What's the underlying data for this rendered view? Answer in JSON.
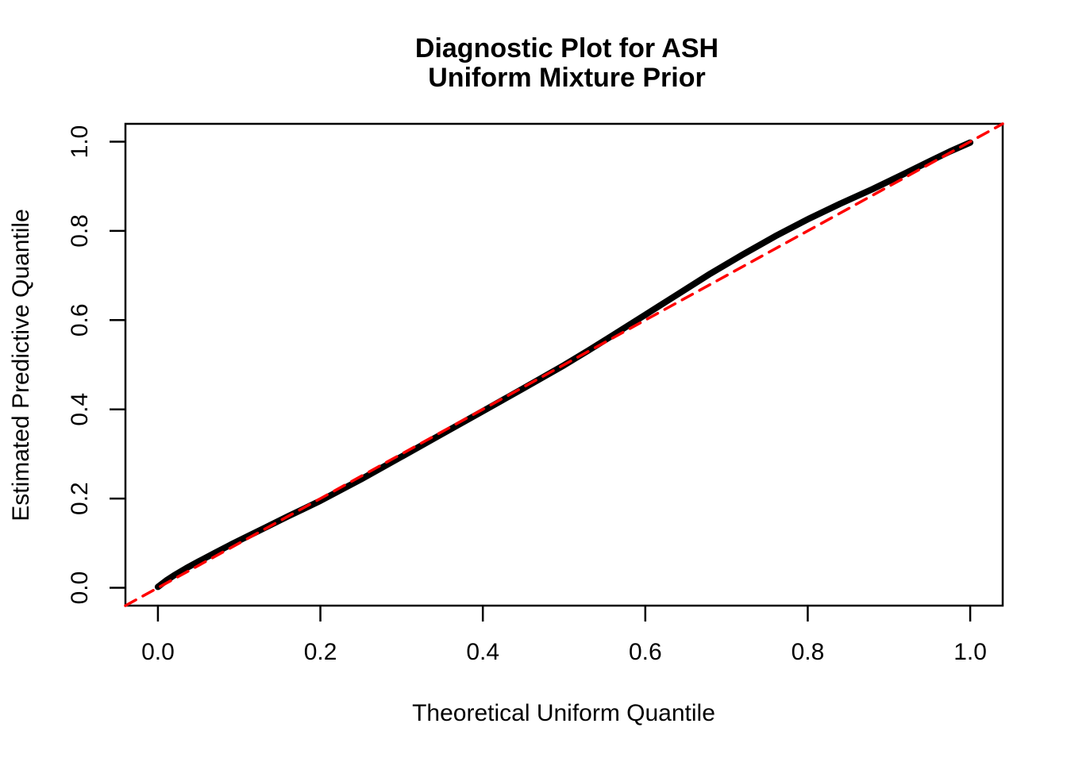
{
  "title": {
    "line1": "Diagnostic Plot for ASH",
    "line2": "Uniform Mixture Prior"
  },
  "chart_data": {
    "type": "line",
    "title": "Diagnostic Plot for ASH\nUniform Mixture Prior",
    "xlabel": "Theoretical Uniform Quantile",
    "ylabel": "Estimated Predictive Quantile",
    "xlim": [
      -0.04,
      1.04
    ],
    "ylim": [
      -0.04,
      1.04
    ],
    "grid": false,
    "legend": "none",
    "x_ticks": [
      0.0,
      0.2,
      0.4,
      0.6,
      0.8,
      1.0
    ],
    "y_ticks": [
      0.0,
      0.2,
      0.4,
      0.6,
      0.8,
      1.0
    ],
    "x_tick_labels": [
      "0.0",
      "0.2",
      "0.4",
      "0.6",
      "0.8",
      "1.0"
    ],
    "y_tick_labels": [
      "0.0",
      "0.2",
      "0.4",
      "0.6",
      "0.8",
      "1.0"
    ],
    "series": [
      {
        "name": "estimated-predictive-quantile-curve",
        "type": "line",
        "color": "#000000",
        "line_width": 8,
        "dash": null,
        "x": [
          0.0,
          0.01,
          0.02,
          0.035,
          0.05,
          0.07,
          0.09,
          0.11,
          0.13,
          0.16,
          0.2,
          0.25,
          0.3,
          0.35,
          0.4,
          0.45,
          0.5,
          0.53,
          0.56,
          0.6,
          0.64,
          0.68,
          0.72,
          0.76,
          0.8,
          0.84,
          0.88,
          0.92,
          0.95,
          0.975,
          1.0
        ],
        "y": [
          0.002,
          0.016,
          0.028,
          0.044,
          0.059,
          0.078,
          0.097,
          0.115,
          0.133,
          0.16,
          0.195,
          0.243,
          0.294,
          0.345,
          0.396,
          0.447,
          0.499,
          0.532,
          0.566,
          0.612,
          0.658,
          0.704,
          0.747,
          0.788,
          0.826,
          0.861,
          0.894,
          0.929,
          0.956,
          0.978,
          0.998
        ]
      },
      {
        "name": "reference-diagonal-line",
        "type": "line",
        "color": "#FF0000",
        "line_width": 3.5,
        "dash": [
          15,
          10
        ],
        "x": [
          -0.04,
          1.04
        ],
        "y": [
          -0.04,
          1.04
        ]
      }
    ]
  },
  "colors": {
    "background": "#FFFFFF",
    "foreground": "#000000",
    "reference_line": "#FF0000"
  }
}
